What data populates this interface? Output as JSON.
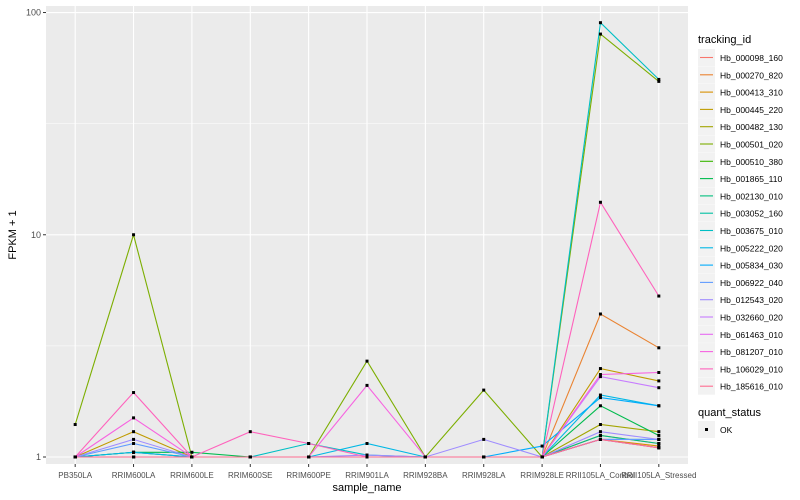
{
  "chart_data": {
    "type": "line",
    "xlabel": "sample_name",
    "ylabel": "FPKM + 1",
    "y_scale": "log10",
    "ylim": [
      0.93,
      107
    ],
    "y_ticks": [
      1,
      10,
      100
    ],
    "y_tick_labels": [
      "1",
      "10",
      "100"
    ],
    "grid": true,
    "legend_position": "right",
    "panel_background": "#ebebeb",
    "categories": [
      "PB350LA",
      "RRIM600LA",
      "RRIM600LE",
      "RRIM600SE",
      "RRIM600PE",
      "RRIM901LA",
      "RRIM928BA",
      "RRIM928LA",
      "RRIM928LE",
      "RRII105LA_Control",
      "RRII105LA_Stressed"
    ],
    "legend_title": "tracking_id",
    "series": [
      {
        "name": "Hb_000098_160",
        "color": "#F8766D",
        "values": [
          1.0,
          1.0,
          1.0,
          1.0,
          1.0,
          1.0,
          1.0,
          1.0,
          1.0,
          1.25,
          1.15
        ]
      },
      {
        "name": "Hb_000270_820",
        "color": "#EA8331",
        "values": [
          1.0,
          1.05,
          1.0,
          1.0,
          1.0,
          1.0,
          1.0,
          1.0,
          1.0,
          4.4,
          3.1
        ]
      },
      {
        "name": "Hb_000413_310",
        "color": "#D89000",
        "values": [
          1.0,
          1.0,
          1.0,
          1.0,
          1.0,
          1.0,
          1.0,
          1.0,
          1.0,
          1.2,
          1.12
        ]
      },
      {
        "name": "Hb_000445_220",
        "color": "#C09B00",
        "values": [
          1.0,
          1.3,
          1.0,
          1.0,
          1.0,
          1.0,
          1.0,
          1.0,
          1.0,
          2.5,
          2.2
        ]
      },
      {
        "name": "Hb_000482_130",
        "color": "#A3A500",
        "values": [
          1.0,
          1.0,
          1.0,
          1.0,
          1.0,
          1.0,
          1.0,
          1.0,
          1.0,
          1.4,
          1.3
        ]
      },
      {
        "name": "Hb_000501_020",
        "color": "#7CAE00",
        "values": [
          1.4,
          10.0,
          1.0,
          1.0,
          1.0,
          2.7,
          1.0,
          2.0,
          1.0,
          80.0,
          49.0
        ]
      },
      {
        "name": "Hb_000510_380",
        "color": "#39B600",
        "values": [
          1.0,
          1.0,
          1.0,
          1.0,
          1.0,
          1.0,
          1.0,
          1.0,
          1.0,
          1.2,
          1.1
        ]
      },
      {
        "name": "Hb_001865_110",
        "color": "#00BB4E",
        "values": [
          1.0,
          1.05,
          1.05,
          1.0,
          1.0,
          1.0,
          1.0,
          1.0,
          1.0,
          1.7,
          1.25
        ]
      },
      {
        "name": "Hb_002130_010",
        "color": "#00BF7D",
        "values": [
          1.0,
          1.0,
          1.0,
          1.0,
          1.0,
          1.0,
          1.0,
          1.0,
          1.0,
          1.25,
          1.15
        ]
      },
      {
        "name": "Hb_003052_160",
        "color": "#00C1A3",
        "values": [
          1.0,
          1.0,
          1.0,
          1.0,
          1.0,
          1.0,
          1.0,
          1.0,
          1.0,
          1.2,
          1.2
        ]
      },
      {
        "name": "Hb_003675_010",
        "color": "#00BFC4",
        "values": [
          1.0,
          1.05,
          1.0,
          1.0,
          1.15,
          1.02,
          1.0,
          1.0,
          1.0,
          90.0,
          50.0
        ]
      },
      {
        "name": "Hb_005222_020",
        "color": "#00B8E5",
        "values": [
          1.0,
          1.05,
          1.0,
          1.0,
          1.0,
          1.15,
          1.0,
          1.0,
          1.0,
          1.9,
          1.7
        ]
      },
      {
        "name": "Hb_005834_030",
        "color": "#00ACFC",
        "values": [
          1.0,
          1.0,
          1.0,
          1.0,
          1.0,
          1.0,
          1.0,
          1.0,
          1.12,
          1.85,
          1.7
        ]
      },
      {
        "name": "Hb_006922_040",
        "color": "#619CFF",
        "values": [
          1.0,
          1.15,
          1.0,
          1.0,
          1.0,
          1.0,
          1.0,
          1.0,
          1.0,
          1.2,
          1.2
        ]
      },
      {
        "name": "Hb_012543_020",
        "color": "#9F8CFF",
        "values": [
          1.0,
          1.2,
          1.0,
          1.0,
          1.0,
          1.02,
          1.0,
          1.2,
          1.0,
          1.3,
          1.2
        ]
      },
      {
        "name": "Hb_032660_020",
        "color": "#C77CFF",
        "values": [
          1.0,
          1.0,
          1.0,
          1.0,
          1.0,
          1.0,
          1.0,
          1.0,
          1.0,
          2.3,
          2.05
        ]
      },
      {
        "name": "Hb_061463_010",
        "color": "#E76BF3",
        "values": [
          1.0,
          1.0,
          1.0,
          1.0,
          1.0,
          1.0,
          1.0,
          1.0,
          1.0,
          1.2,
          1.1
        ]
      },
      {
        "name": "Hb_081207_010",
        "color": "#F763E0",
        "values": [
          1.0,
          1.5,
          1.0,
          1.0,
          1.0,
          2.1,
          1.0,
          1.0,
          1.0,
          2.35,
          2.4
        ]
      },
      {
        "name": "Hb_106029_010",
        "color": "#FF62BC",
        "values": [
          1.0,
          1.95,
          1.0,
          1.3,
          1.15,
          1.0,
          1.0,
          1.0,
          1.0,
          14.0,
          5.3
        ]
      },
      {
        "name": "Hb_185616_010",
        "color": "#FF6C91",
        "values": [
          1.0,
          1.0,
          1.0,
          1.0,
          1.0,
          1.0,
          1.0,
          1.0,
          1.0,
          1.2,
          1.1
        ]
      }
    ],
    "legend2_title": "quant_status",
    "legend2_items": [
      "OK"
    ]
  }
}
